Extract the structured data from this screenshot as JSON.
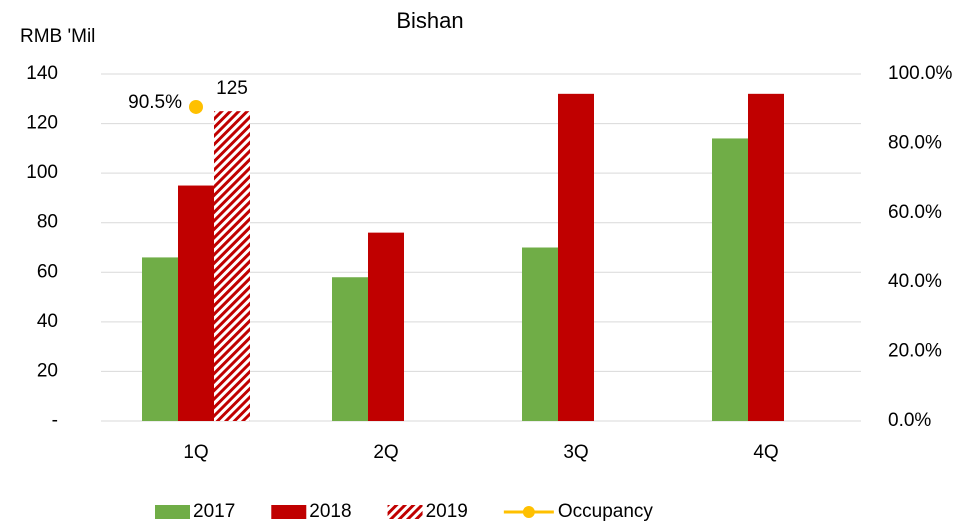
{
  "chart_data": {
    "type": "bar",
    "title": "Bishan",
    "y_label": "RMB 'Mil",
    "categories": [
      "1Q",
      "2Q",
      "3Q",
      "4Q"
    ],
    "series": [
      {
        "name": "2017",
        "color": "#70ad47",
        "values": [
          66,
          58,
          70,
          114
        ]
      },
      {
        "name": "2018",
        "color": "#c00000",
        "values": [
          95,
          76,
          132,
          132
        ]
      },
      {
        "name": "2019",
        "color": "#c00000",
        "pattern": "hatch",
        "values": [
          125,
          null,
          null,
          null
        ]
      },
      {
        "name": "Occupancy",
        "color": "#ffc000",
        "type": "line",
        "axis": "y2",
        "values": [
          90.5,
          null,
          null,
          null
        ],
        "value_labels": [
          "90.5%",
          null,
          null,
          null
        ]
      }
    ],
    "ylim": [
      0,
      140
    ],
    "yticks": [
      {
        "value": 0,
        "label": "-"
      },
      20,
      40,
      60,
      80,
      100,
      120,
      140
    ],
    "y2lim": [
      0,
      100
    ],
    "y2ticks": [
      {
        "value": 0,
        "label": "0.0%"
      },
      {
        "value": 20,
        "label": "20.0%"
      },
      {
        "value": 40,
        "label": "40.0%"
      },
      {
        "value": 60,
        "label": "60.0%"
      },
      {
        "value": 80,
        "label": "80.0%"
      },
      {
        "value": 100,
        "label": "100.0%"
      }
    ],
    "grid": true,
    "legend": "bottom"
  }
}
